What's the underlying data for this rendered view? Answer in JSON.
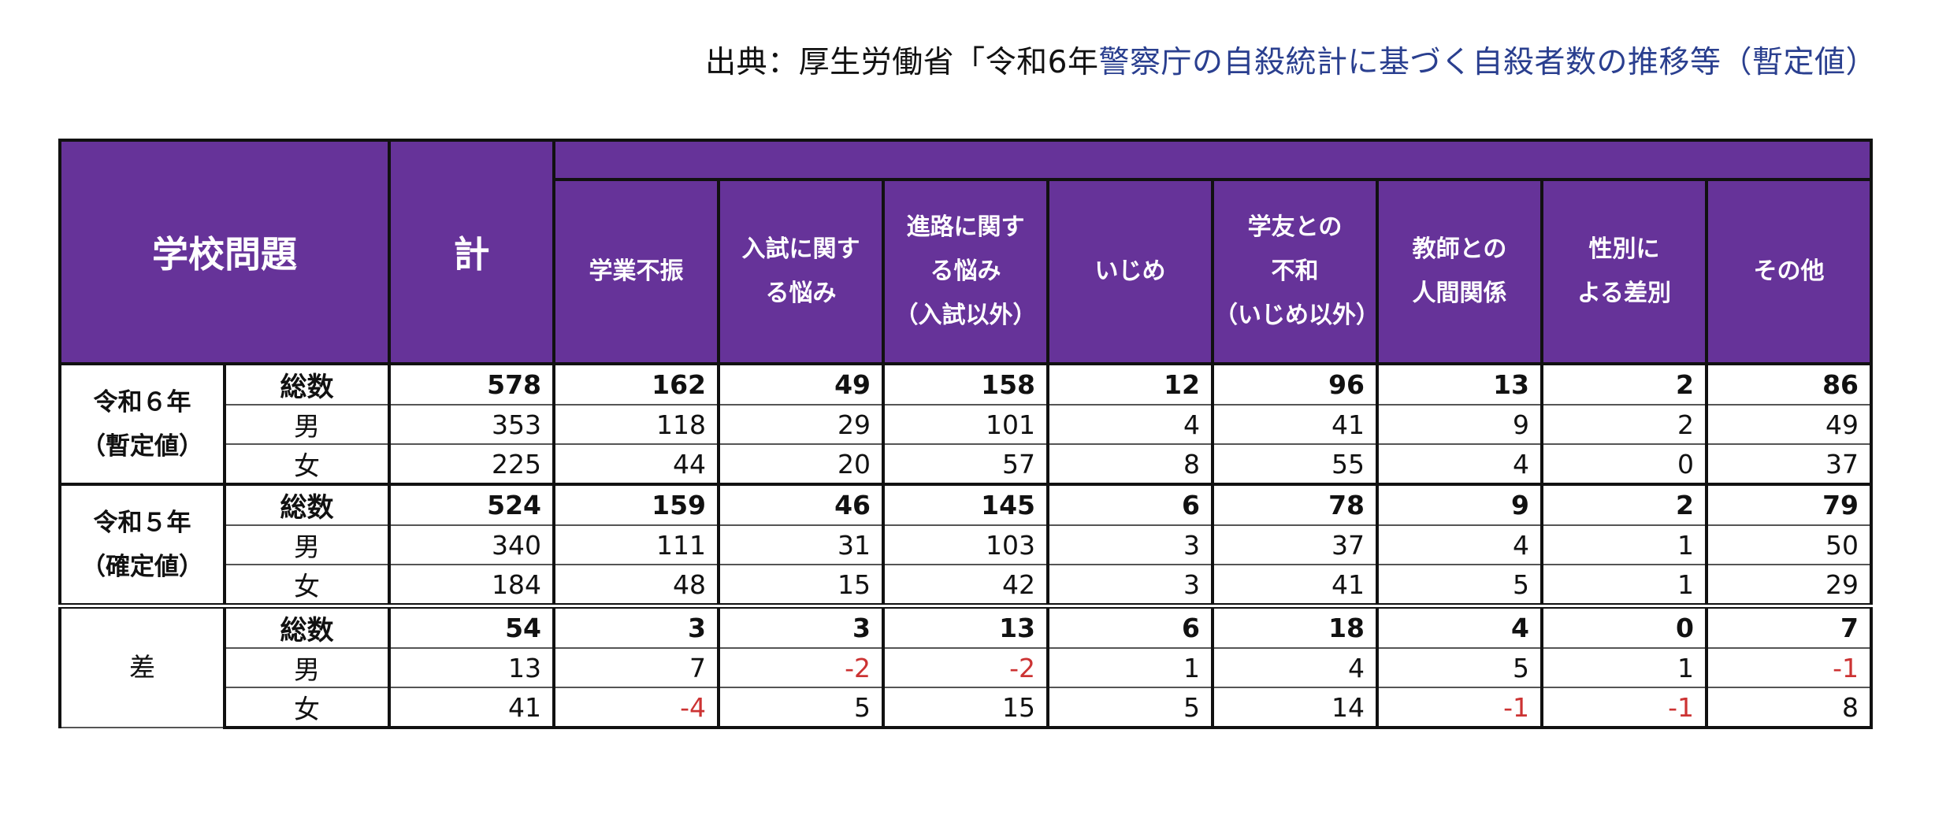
{
  "source": {
    "prefix": "出典：厚生労働省「令和6年",
    "link": "警察庁の自殺統計に基づく自殺者数の推移等（暫定値）"
  },
  "header": {
    "title": "学校問題",
    "total": "計",
    "categories": [
      "学業不振",
      "入試に関す\nる悩み",
      "進路に関す\nる悩み\n（入試以外）",
      "いじめ",
      "学友との\n不和\n（いじめ以外）",
      "教師との\n人間関係",
      "性別に\nよる差別",
      "その他"
    ]
  },
  "rows": [
    {
      "group": "令和６年\n（暫定値）",
      "sub": "総数",
      "values": [
        "578",
        "162",
        "49",
        "158",
        "12",
        "96",
        "13",
        "2",
        "86"
      ]
    },
    {
      "sub": "男",
      "values": [
        "353",
        "118",
        "29",
        "101",
        "4",
        "41",
        "9",
        "2",
        "49"
      ]
    },
    {
      "sub": "女",
      "values": [
        "225",
        "44",
        "20",
        "57",
        "8",
        "55",
        "4",
        "0",
        "37"
      ]
    },
    {
      "group": "令和５年\n（確定値）",
      "sub": "総数",
      "values": [
        "524",
        "159",
        "46",
        "145",
        "6",
        "78",
        "9",
        "2",
        "79"
      ]
    },
    {
      "sub": "男",
      "values": [
        "340",
        "111",
        "31",
        "103",
        "3",
        "37",
        "4",
        "1",
        "50"
      ]
    },
    {
      "sub": "女",
      "values": [
        "184",
        "48",
        "15",
        "42",
        "3",
        "41",
        "5",
        "1",
        "29"
      ]
    },
    {
      "group": "差",
      "sub": "総数",
      "values": [
        "54",
        "3",
        "3",
        "13",
        "6",
        "18",
        "4",
        "0",
        "7"
      ]
    },
    {
      "sub": "男",
      "values": [
        "13",
        "7",
        "-2",
        "-2",
        "1",
        "4",
        "5",
        "1",
        "-1"
      ]
    },
    {
      "sub": "女",
      "values": [
        "41",
        "-4",
        "5",
        "15",
        "5",
        "14",
        "-1",
        "-1",
        "8"
      ]
    }
  ],
  "colors": {
    "header_bg": "#663399",
    "header_text": "#ffffff",
    "negative": "#cc3333",
    "source_link": "#2a3f8f"
  }
}
